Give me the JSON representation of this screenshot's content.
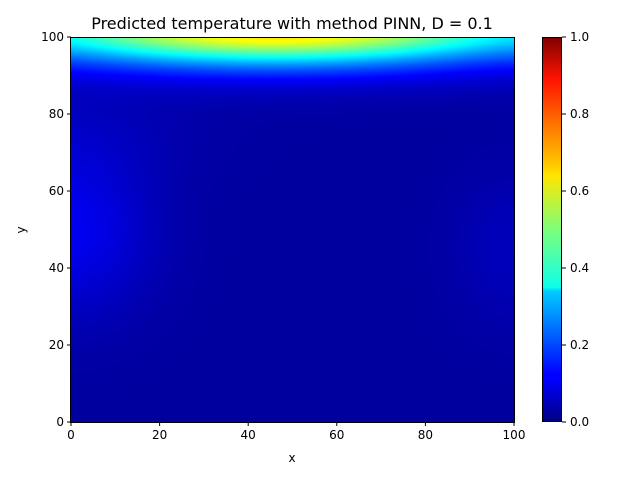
{
  "chart_data": {
    "type": "heatmap",
    "title": "Predicted temperature with method PINN, D = 0.1",
    "xlabel": "x",
    "ylabel": "y",
    "xlim": [
      0,
      100
    ],
    "ylim": [
      0,
      100
    ],
    "x_ticks": [
      "0",
      "20",
      "40",
      "60",
      "80",
      "100"
    ],
    "y_ticks": [
      "0",
      "20",
      "40",
      "60",
      "80",
      "100"
    ],
    "colormap": "jet",
    "colorbar": {
      "range": [
        0.0,
        1.0
      ],
      "ticks": [
        "0.0",
        "0.2",
        "0.4",
        "0.6",
        "0.8",
        "1.0"
      ]
    },
    "field_description_values": {
      "top_edge_max": 0.62,
      "top_edge_min_near_corners": 0.32,
      "interior_background": 0.03,
      "left_bulge_center_y": 50,
      "left_bulge_value": 0.11,
      "right_bulge_value": 0.06
    },
    "grid": false,
    "legend": "none"
  }
}
